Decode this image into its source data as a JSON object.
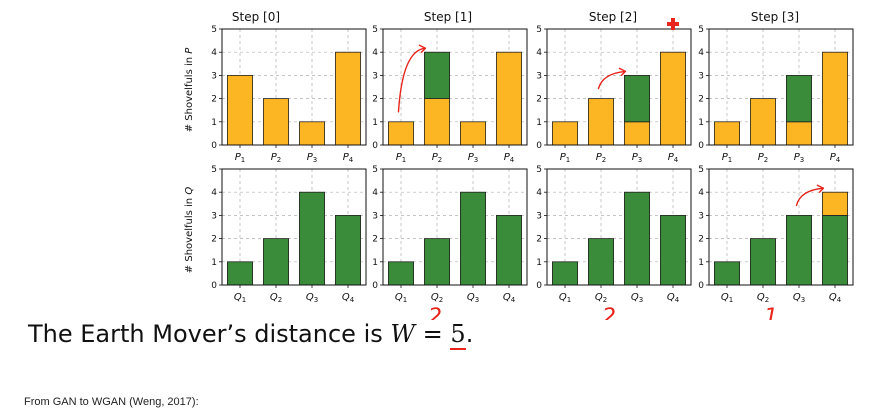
{
  "chart_data": {
    "type": "bar",
    "ylim": [
      0,
      5
    ],
    "yticks": [
      "0",
      "1",
      "2",
      "3",
      "4",
      "5"
    ],
    "rows": [
      {
        "ylabel_prefix": "# Shovelfuls in ",
        "ylabel_var": "P",
        "categories": [
          {
            "base": "P",
            "sub": "1"
          },
          {
            "base": "P",
            "sub": "2"
          },
          {
            "base": "P",
            "sub": "3"
          },
          {
            "base": "P",
            "sub": "4"
          }
        ],
        "steps": [
          {
            "orange": [
              3,
              2,
              1,
              4
            ],
            "green": [
              0,
              0,
              0,
              0
            ]
          },
          {
            "orange": [
              1,
              2,
              1,
              4
            ],
            "green": [
              0,
              2,
              0,
              0
            ]
          },
          {
            "orange": [
              1,
              2,
              1,
              4
            ],
            "green": [
              0,
              0,
              2,
              0
            ]
          },
          {
            "orange": [
              1,
              2,
              1,
              4
            ],
            "green": [
              0,
              0,
              2,
              0
            ]
          }
        ]
      },
      {
        "ylabel_prefix": "# Shovelfuls in ",
        "ylabel_var": "Q",
        "categories": [
          {
            "base": "Q",
            "sub": "1"
          },
          {
            "base": "Q",
            "sub": "2"
          },
          {
            "base": "Q",
            "sub": "3"
          },
          {
            "base": "Q",
            "sub": "4"
          }
        ],
        "steps": [
          {
            "orange": [
              0,
              0,
              0,
              0
            ],
            "green": [
              1,
              2,
              4,
              3
            ]
          },
          {
            "orange": [
              0,
              0,
              0,
              0
            ],
            "green": [
              1,
              2,
              4,
              3
            ]
          },
          {
            "orange": [
              0,
              0,
              0,
              0
            ],
            "green": [
              1,
              2,
              4,
              3
            ]
          },
          {
            "orange": [
              0,
              0,
              0,
              1
            ],
            "green": [
              1,
              2,
              3,
              3
            ]
          }
        ]
      }
    ],
    "step_titles": [
      "Step [0]",
      "Step [1]",
      "Step [2]",
      "Step [3]"
    ],
    "annotations": {
      "move_arrows": [
        {
          "row": 0,
          "step": 1,
          "from": 0,
          "to": 1
        },
        {
          "row": 0,
          "step": 2,
          "from": 1,
          "to": 2
        },
        {
          "row": 1,
          "step": 3,
          "from": 2,
          "to": 3
        }
      ],
      "step_costs": [
        {
          "step": 1,
          "text": "2"
        },
        {
          "step": 2,
          "text": "2"
        },
        {
          "step": 3,
          "text": "1"
        }
      ]
    }
  },
  "colors": {
    "orange": "#FDB623",
    "green": "#3A8C3A",
    "ink": "#E8241B",
    "grid": "#b0b0b0"
  },
  "caption": {
    "prefix": "The Earth Mover’s distance is ",
    "var": "W",
    "equals": " = ",
    "value": "5",
    "suffix": "."
  },
  "source_text": "From GAN to WGAN (Weng, 2017):"
}
